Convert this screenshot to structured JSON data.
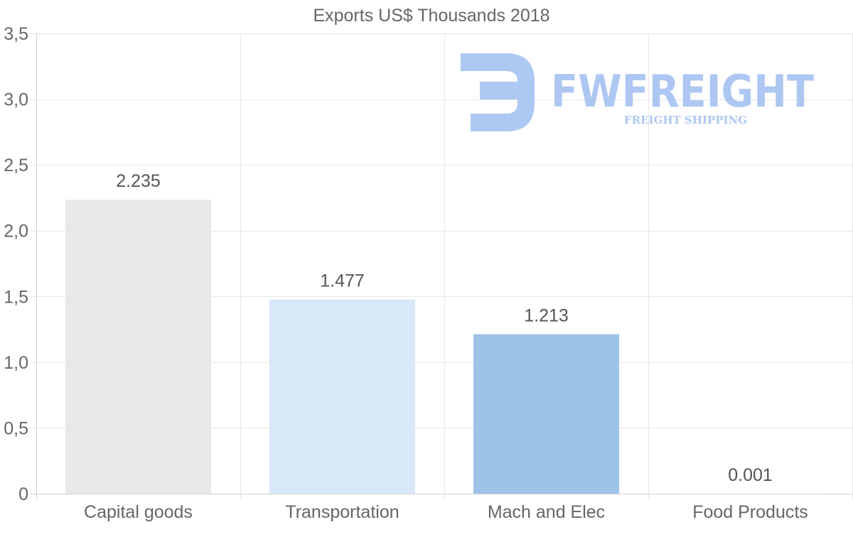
{
  "chart_data": {
    "type": "bar",
    "title": "Exports US$ Thousands 2018",
    "categories": [
      "Capital goods",
      "Transportation",
      "Mach and Elec",
      "Food Products"
    ],
    "values": [
      2.235,
      1.477,
      1.213,
      0.001
    ],
    "data_labels": [
      "2.235",
      "1.477",
      "1.213",
      "0.001"
    ],
    "bar_colors": [
      "#e8e8e8",
      "#d9e8f9",
      "#9dc3e7",
      "#d9e8f9"
    ],
    "ylim": [
      0,
      3.5
    ],
    "yticks": [
      0,
      0.5,
      1.0,
      1.5,
      2.0,
      2.5,
      3.0,
      3.5
    ],
    "ytick_labels": [
      "0",
      "0,5",
      "1,0",
      "1,5",
      "2,0",
      "2,5",
      "3,0",
      "3,5"
    ],
    "xlabel": "",
    "ylabel": "",
    "grid": true
  },
  "watermark": {
    "brand": "FWFREIGHT",
    "tagline": "FREIGHT SHIPPING",
    "color": "#a9c5f2"
  }
}
